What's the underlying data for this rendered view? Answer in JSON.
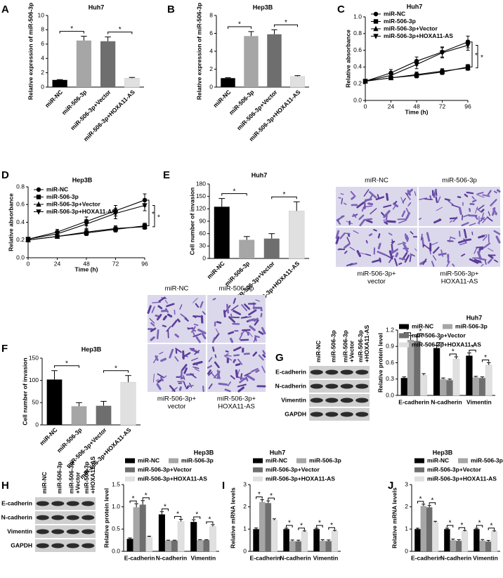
{
  "chart_data": [
    {
      "type": "bar",
      "panel": "A",
      "title": "Huh7",
      "ylabel": "Relative expression of miR-506-3p",
      "categories": [
        "miR-NC",
        "miR-506-3p",
        "miR-506-3p+Vector",
        "miR-506-3p+HOXA11-AS"
      ],
      "values": [
        1.0,
        6.5,
        6.4,
        1.25
      ],
      "errors": [
        0.05,
        0.6,
        0.6,
        0.1
      ],
      "colors": [
        "#000000",
        "#a6a6a6",
        "#6e6e6e",
        "#e0e0e0"
      ],
      "ylim": [
        0,
        10
      ],
      "yticks": [
        0,
        2,
        4,
        6,
        8,
        10
      ],
      "significance": [
        {
          "label": "*",
          "pair": [
            "miR-NC",
            "miR-506-3p"
          ]
        },
        {
          "label": "*",
          "pair": [
            "miR-506-3p+Vector",
            "miR-506-3p+HOXA11-AS"
          ]
        }
      ]
    },
    {
      "type": "bar",
      "panel": "B",
      "title": "Hep3B",
      "ylabel": "Relative expression of miR-506-3p",
      "categories": [
        "miR-NC",
        "miR-506-3p",
        "miR-506-3p+Vector",
        "miR-506-3p+HOXA11-AS"
      ],
      "values": [
        1.0,
        5.7,
        5.9,
        1.2
      ],
      "errors": [
        0.05,
        0.5,
        0.5,
        0.08
      ],
      "colors": [
        "#000000",
        "#a6a6a6",
        "#6e6e6e",
        "#e0e0e0"
      ],
      "ylim": [
        0,
        8
      ],
      "yticks": [
        0,
        2,
        4,
        6,
        8
      ],
      "significance": [
        {
          "label": "*",
          "pair": [
            "miR-NC",
            "miR-506-3p"
          ]
        },
        {
          "label": "*",
          "pair": [
            "miR-506-3p+Vector",
            "miR-506-3p+HOXA11-AS"
          ]
        }
      ]
    },
    {
      "type": "line",
      "panel": "C",
      "title": "Huh7",
      "xlabel": "Time (h)",
      "ylabel": "Relative absorbance",
      "x": [
        0,
        24,
        48,
        72,
        96
      ],
      "xlim": [
        0,
        96
      ],
      "xticks": [
        0,
        24,
        48,
        72,
        96
      ],
      "ylim": [
        0,
        1.0
      ],
      "yticks": [
        {
          "value": 0,
          "label": "0.0"
        },
        0.2,
        0.4,
        0.6,
        0.8,
        {
          "value": 1.0,
          "label": "1.0"
        }
      ],
      "series": [
        {
          "name": "miR-NC",
          "color": "#000000",
          "marker": "circle",
          "values": [
            0.23,
            0.33,
            0.47,
            0.58,
            0.7
          ],
          "errors": [
            0.02,
            0.04,
            0.05,
            0.06,
            0.07
          ]
        },
        {
          "name": "miR-506-3p",
          "color": "#000000",
          "marker": "square",
          "values": [
            0.23,
            0.27,
            0.3,
            0.34,
            0.4
          ],
          "errors": [
            0.02,
            0.02,
            0.03,
            0.03,
            0.03
          ]
        },
        {
          "name": "miR-506-3p+Vector",
          "color": "#000000",
          "marker": "triangle",
          "values": [
            0.23,
            0.27,
            0.31,
            0.35,
            0.39
          ],
          "errors": [
            0.02,
            0.02,
            0.03,
            0.03,
            0.03
          ]
        },
        {
          "name": "miR-506-3p+HOXA11-AS",
          "color": "#000000",
          "marker": "triangle-down",
          "values": [
            0.23,
            0.3,
            0.43,
            0.57,
            0.66
          ],
          "errors": [
            0.02,
            0.04,
            0.05,
            0.06,
            0.06
          ]
        }
      ],
      "significance": [
        {
          "label": "*",
          "pair": [
            "miR-NC",
            "miR-506-3p"
          ]
        },
        {
          "label": "*",
          "pair": [
            "miR-506-3p+HOXA11-AS",
            "miR-506-3p+Vector"
          ]
        }
      ]
    },
    {
      "type": "line",
      "panel": "D",
      "title": "Hep3B",
      "xlabel": "Time (h)",
      "ylabel": "Relative absorbance",
      "x": [
        0,
        24,
        48,
        72,
        96
      ],
      "xlim": [
        0,
        96
      ],
      "xticks": [
        0,
        24,
        48,
        72,
        96
      ],
      "ylim": [
        0,
        0.8
      ],
      "yticks": [
        {
          "value": 0,
          "label": "0.0"
        },
        0.2,
        0.4,
        0.6,
        0.8
      ],
      "series": [
        {
          "name": "miR-NC",
          "color": "#000000",
          "marker": "circle",
          "values": [
            0.21,
            0.29,
            0.41,
            0.53,
            0.65
          ],
          "errors": [
            0.02,
            0.03,
            0.05,
            0.06,
            0.07
          ]
        },
        {
          "name": "miR-506-3p",
          "color": "#000000",
          "marker": "square",
          "values": [
            0.2,
            0.24,
            0.28,
            0.32,
            0.36
          ],
          "errors": [
            0.02,
            0.02,
            0.03,
            0.03,
            0.03
          ]
        },
        {
          "name": "miR-506-3p+Vector",
          "color": "#000000",
          "marker": "triangle",
          "values": [
            0.2,
            0.24,
            0.29,
            0.33,
            0.35
          ],
          "errors": [
            0.02,
            0.02,
            0.03,
            0.03,
            0.03
          ]
        },
        {
          "name": "miR-506-3p+HOXA11-AS",
          "color": "#000000",
          "marker": "triangle-down",
          "values": [
            0.21,
            0.27,
            0.38,
            0.5,
            0.59
          ],
          "errors": [
            0.02,
            0.03,
            0.05,
            0.06,
            0.06
          ]
        }
      ],
      "significance": [
        {
          "label": "*",
          "pair": [
            "miR-NC",
            "miR-506-3p"
          ]
        },
        {
          "label": "*",
          "pair": [
            "miR-506-3p+HOXA11-AS",
            "miR-506-3p+Vector"
          ]
        }
      ]
    },
    {
      "type": "bar",
      "panel": "E",
      "title": "Huh7",
      "ylabel": "Cell number of invasion",
      "categories": [
        "miR-NC",
        "miR-506-3p",
        "miR-506-3p+Vector",
        "miR-506-3p+HOXA11-AS"
      ],
      "values": [
        125,
        45,
        48,
        115
      ],
      "errors": [
        20,
        8,
        12,
        22
      ],
      "colors": [
        "#000000",
        "#a6a6a6",
        "#6e6e6e",
        "#e0e0e0"
      ],
      "ylim": [
        0,
        180
      ],
      "yticks": [
        0,
        30,
        60,
        90,
        120,
        150,
        180
      ],
      "significance": [
        {
          "label": "*",
          "pair": [
            "miR-NC",
            "miR-506-3p"
          ]
        },
        {
          "label": "*",
          "pair": [
            "miR-506-3p+Vector",
            "miR-506-3p+HOXA11-AS"
          ]
        }
      ],
      "image_labels": [
        [
          "miR-NC"
        ],
        [
          "miR-506-3p"
        ],
        [
          "miR-506-3p+",
          "vector"
        ],
        [
          "miR-506-3p+",
          "HOXA11-AS"
        ]
      ]
    },
    {
      "type": "bar",
      "panel": "F",
      "title": "Hep3B",
      "ylabel": "Cell number of invasion",
      "categories": [
        "miR-NC",
        "miR-506-3p",
        "miR-506-3p+Vector",
        "miR-506-3p+HOXA11-AS"
      ],
      "values": [
        102,
        42,
        43,
        96
      ],
      "errors": [
        20,
        8,
        10,
        15
      ],
      "colors": [
        "#000000",
        "#a6a6a6",
        "#6e6e6e",
        "#e0e0e0"
      ],
      "ylim": [
        0,
        150
      ],
      "yticks": [
        0,
        50,
        100,
        150
      ],
      "significance": [
        {
          "label": "*",
          "pair": [
            "miR-NC",
            "miR-506-3p"
          ]
        },
        {
          "label": "*",
          "pair": [
            "miR-506-3p+Vector",
            "miR-506-3p+HOXA11-AS"
          ]
        }
      ],
      "image_labels": [
        [
          "miR-NC"
        ],
        [
          "miR-506-3p"
        ],
        [
          "miR-506-3p+",
          "vector"
        ],
        [
          "miR-506-3p+",
          "HOXA11-AS"
        ]
      ]
    },
    {
      "type": "bar",
      "panel": "G",
      "title": "Huh7",
      "ylabel": "Relative protein level",
      "categories": [
        "E-cadherin",
        "N-cadherin",
        "Vimentin"
      ],
      "ylim": [
        0,
        1.2
      ],
      "yticks": [
        {
          "value": 0,
          "label": "0.0"
        },
        0.3,
        0.6,
        0.9,
        1.2
      ],
      "series": [
        {
          "name": "miR-NC",
          "color": "#000000",
          "values": [
            0.32,
            0.87,
            0.73
          ],
          "errors": [
            0.02,
            0.05,
            0.05
          ]
        },
        {
          "name": "miR-506-3p",
          "color": "#a6a6a6",
          "values": [
            1.02,
            0.3,
            0.33
          ],
          "errors": [
            0.08,
            0.02,
            0.02
          ]
        },
        {
          "name": "miR-506-3p+Vector",
          "color": "#6e6e6e",
          "values": [
            1.0,
            0.28,
            0.32
          ],
          "errors": [
            0.08,
            0.02,
            0.02
          ]
        },
        {
          "name": "miR-506-3p+HOXA11-AS",
          "color": "#e0e0e0",
          "values": [
            0.37,
            0.67,
            0.56
          ],
          "errors": [
            0.03,
            0.04,
            0.04
          ]
        }
      ],
      "significance": [
        {
          "label": "*",
          "pair": [
            "miR-NC",
            "miR-506-3p"
          ]
        },
        {
          "label": "*",
          "pair": [
            "miR-506-3p+Vector",
            "miR-506-3p+HOXA11-AS"
          ]
        }
      ],
      "blot": {
        "lanes": [
          [
            "miR-NC"
          ],
          [
            "miR-506-3p"
          ],
          [
            "miR-506-3p",
            "+Vector"
          ],
          [
            "miR-506-3p",
            "+HOXA11-AS"
          ]
        ],
        "rows": [
          "E-cadherin",
          "N-cadherin",
          "Vimentin",
          "GAPDH"
        ]
      }
    },
    {
      "type": "bar",
      "panel": "H",
      "title": "Hep3B",
      "ylabel": "Relative protein level",
      "categories": [
        "E-cadherin",
        "N-cadherin",
        "Vimentin"
      ],
      "ylim": [
        0,
        1.5
      ],
      "yticks": [
        {
          "value": 0,
          "label": "0.0"
        },
        0.5,
        {
          "value": 1.0,
          "label": "1.0"
        },
        1.5
      ],
      "series": [
        {
          "name": "miR-NC",
          "color": "#000000",
          "values": [
            0.28,
            0.83,
            0.66
          ],
          "errors": [
            0.02,
            0.06,
            0.05
          ]
        },
        {
          "name": "miR-506-3p",
          "color": "#a6a6a6",
          "values": [
            0.99,
            0.24,
            0.25
          ],
          "errors": [
            0.08,
            0.01,
            0.01
          ]
        },
        {
          "name": "miR-506-3p+Vector",
          "color": "#6e6e6e",
          "values": [
            1.05,
            0.24,
            0.25
          ],
          "errors": [
            0.09,
            0.01,
            0.01
          ]
        },
        {
          "name": "miR-506-3p+HOXA11-AS",
          "color": "#e0e0e0",
          "values": [
            0.32,
            0.67,
            0.56
          ],
          "errors": [
            0.02,
            0.05,
            0.04
          ]
        }
      ],
      "significance": [
        {
          "label": "*",
          "pair": [
            "miR-NC",
            "miR-506-3p"
          ]
        },
        {
          "label": "*",
          "pair": [
            "miR-506-3p+Vector",
            "miR-506-3p+HOXA11-AS"
          ]
        }
      ],
      "blot": {
        "lanes": [
          [
            "miR-NC"
          ],
          [
            "miR-506-3p"
          ],
          [
            "miR-506-3p",
            "+Vector"
          ],
          [
            "miR-506-3p",
            "+HOXA11-AS"
          ]
        ],
        "rows": [
          "E-cadherin",
          "N-cadherin",
          "Vimentin",
          "GAPDH"
        ]
      }
    },
    {
      "type": "bar",
      "panel": "I",
      "title": "Huh7",
      "ylabel": "Relative mRNA levels",
      "categories": [
        "E-cadherin",
        "N-cadherin",
        "Vimentin"
      ],
      "ylim": [
        0,
        3
      ],
      "yticks": [
        0,
        1,
        2,
        3
      ],
      "series": [
        {
          "name": "miR-NC",
          "color": "#000000",
          "values": [
            1.0,
            1.0,
            1.0
          ],
          "errors": [
            0.05,
            0.04,
            0.04
          ]
        },
        {
          "name": "miR-506-3p",
          "color": "#a6a6a6",
          "values": [
            2.22,
            0.46,
            0.47
          ],
          "errors": [
            0.1,
            0.05,
            0.05
          ]
        },
        {
          "name": "miR-506-3p+Vector",
          "color": "#6e6e6e",
          "values": [
            2.17,
            0.45,
            0.46
          ],
          "errors": [
            0.1,
            0.05,
            0.05
          ]
        },
        {
          "name": "miR-506-3p+HOXA11-AS",
          "color": "#e0e0e0",
          "values": [
            1.4,
            0.88,
            0.9
          ],
          "errors": [
            0.06,
            0.04,
            0.04
          ]
        }
      ],
      "significance": [
        {
          "label": "*",
          "pair": [
            "miR-NC",
            "miR-506-3p"
          ]
        },
        {
          "label": "*",
          "pair": [
            "miR-506-3p+Vector",
            "miR-506-3p+HOXA11-AS"
          ]
        }
      ]
    },
    {
      "type": "bar",
      "panel": "J",
      "title": "Hep3B",
      "ylabel": "Relative mRNA levels",
      "categories": [
        "E-cadherin",
        "N-cadherin",
        "Vimentin"
      ],
      "ylim": [
        0,
        3
      ],
      "yticks": [
        0,
        1,
        2,
        3
      ],
      "series": [
        {
          "name": "miR-NC",
          "color": "#000000",
          "values": [
            1.0,
            1.0,
            1.0
          ],
          "errors": [
            0.04,
            0.04,
            0.04
          ]
        },
        {
          "name": "miR-506-3p",
          "color": "#a6a6a6",
          "values": [
            2.04,
            0.5,
            0.48
          ],
          "errors": [
            0.08,
            0.05,
            0.05
          ]
        },
        {
          "name": "miR-506-3p+Vector",
          "color": "#6e6e6e",
          "values": [
            1.98,
            0.47,
            0.44
          ],
          "errors": [
            0.08,
            0.05,
            0.05
          ]
        },
        {
          "name": "miR-506-3p+HOXA11-AS",
          "color": "#e0e0e0",
          "values": [
            1.3,
            0.9,
            0.88
          ],
          "errors": [
            0.05,
            0.04,
            0.04
          ]
        }
      ],
      "significance": [
        {
          "label": "*",
          "pair": [
            "miR-NC",
            "miR-506-3p"
          ]
        },
        {
          "label": "*",
          "pair": [
            "miR-506-3p+Vector",
            "miR-506-3p+HOXA11-AS"
          ]
        }
      ]
    }
  ]
}
